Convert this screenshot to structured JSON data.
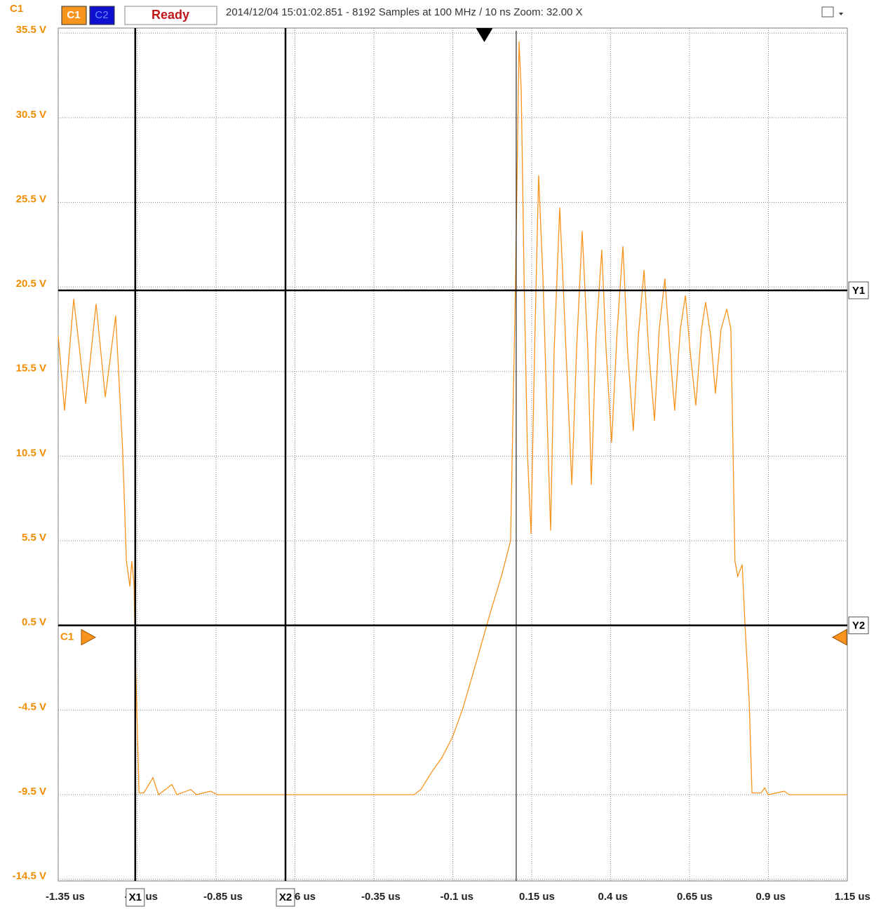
{
  "toolbar": {
    "channel": "C1",
    "button_c1": "C1",
    "button_c2": "C2",
    "status": "Ready",
    "info": "2014/12/04  15:01:02.851 - 8192 Samples at 100 MHz / 10 ns Zoom: 32.00 X"
  },
  "chart_data": {
    "type": "line",
    "xlim": [
      -1.35,
      1.15
    ],
    "ylim": [
      -14.6,
      35.8
    ],
    "grid": true,
    "xticks": [
      {
        "value": -1.35,
        "label": "-1.35 us"
      },
      {
        "value": -1.1,
        "label": "-1.1 us"
      },
      {
        "value": -0.85,
        "label": "-0.85 us"
      },
      {
        "value": -0.6,
        "label": "-0.6 us"
      },
      {
        "value": -0.35,
        "label": "-0.35 us"
      },
      {
        "value": -0.1,
        "label": "-0.1 us"
      },
      {
        "value": 0.15,
        "label": "0.15 us"
      },
      {
        "value": 0.4,
        "label": "0.4 us"
      },
      {
        "value": 0.65,
        "label": "0.65 us"
      },
      {
        "value": 0.9,
        "label": "0.9 us"
      },
      {
        "value": 1.15,
        "label": "1.15 us"
      }
    ],
    "yticks": [
      {
        "value": 35.5,
        "label": "35.5 V"
      },
      {
        "value": 30.5,
        "label": "30.5 V"
      },
      {
        "value": 25.5,
        "label": "25.5 V"
      },
      {
        "value": 20.5,
        "label": "20.5 V"
      },
      {
        "value": 15.5,
        "label": "15.5 V"
      },
      {
        "value": 10.5,
        "label": "10.5 V"
      },
      {
        "value": 5.5,
        "label": "5.5 V"
      },
      {
        "value": 0.5,
        "label": "0.5 V"
      },
      {
        "value": -4.5,
        "label": "-4.5 V"
      },
      {
        "value": -9.5,
        "label": "-9.5 V"
      },
      {
        "value": -14.5,
        "label": "-14.5 V"
      }
    ],
    "x": [
      -1.35,
      -1.33,
      -1.301,
      -1.263,
      -1.23,
      -1.201,
      -1.168,
      -1.146,
      -1.134,
      -1.123,
      -1.117,
      -1.11,
      -1.106,
      -1.094,
      -1.079,
      -1.05,
      -1.032,
      -0.99,
      -0.974,
      -0.93,
      -0.912,
      -0.868,
      -0.846,
      -0.223,
      -0.201,
      -0.168,
      -0.134,
      -0.101,
      -0.068,
      -0.023,
      0.021,
      0.054,
      0.083,
      0.099,
      0.103,
      0.11,
      0.117,
      0.126,
      0.137,
      0.148,
      0.159,
      0.172,
      0.186,
      0.199,
      0.21,
      0.221,
      0.239,
      0.254,
      0.277,
      0.292,
      0.31,
      0.328,
      0.339,
      0.354,
      0.372,
      0.386,
      0.403,
      0.421,
      0.439,
      0.454,
      0.472,
      0.488,
      0.506,
      0.521,
      0.539,
      0.554,
      0.572,
      0.588,
      0.603,
      0.621,
      0.637,
      0.652,
      0.67,
      0.688,
      0.701,
      0.717,
      0.732,
      0.75,
      0.768,
      0.781,
      0.794,
      0.803,
      0.817,
      0.826,
      0.839,
      0.848,
      0.877,
      0.888,
      0.899,
      0.95,
      0.966,
      1.15
    ],
    "series": [
      {
        "name": "C1",
        "color": "#f7941d",
        "values": [
          17.6,
          13.2,
          19.8,
          13.6,
          19.5,
          14.0,
          18.8,
          10.9,
          4.3,
          2.8,
          4.3,
          3.0,
          -0.9,
          -9.4,
          -9.4,
          -8.5,
          -9.5,
          -8.9,
          -9.5,
          -9.2,
          -9.5,
          -9.3,
          -9.5,
          -9.5,
          -9.2,
          -8.2,
          -7.3,
          -6.1,
          -4.4,
          -1.5,
          1.4,
          3.4,
          5.5,
          20.9,
          26.3,
          35.0,
          32.1,
          20.9,
          10.5,
          5.9,
          16.7,
          27.1,
          20.9,
          12.6,
          6.1,
          16.7,
          25.2,
          18.8,
          8.8,
          16.7,
          23.8,
          16.7,
          8.8,
          17.6,
          22.7,
          16.7,
          11.3,
          18.0,
          22.9,
          16.7,
          12.0,
          17.6,
          21.5,
          16.7,
          12.6,
          18.0,
          21.0,
          16.7,
          13.2,
          18.0,
          20.0,
          16.7,
          13.5,
          18.0,
          19.6,
          17.6,
          14.2,
          18.0,
          19.2,
          18.0,
          4.3,
          3.4,
          4.1,
          0.5,
          -4.0,
          -9.4,
          -9.4,
          -9.1,
          -9.5,
          -9.3,
          -9.5,
          -9.5
        ]
      }
    ],
    "x_cursors": [
      {
        "label": "X1",
        "value": -1.106
      },
      {
        "label": "X2",
        "value": -0.63
      }
    ],
    "y_cursors": [
      {
        "label": "Y1",
        "value": 20.3
      },
      {
        "label": "Y2",
        "value": 0.5
      }
    ],
    "offset_marker": {
      "label": "C1",
      "value": -0.2
    },
    "trigger_x": 0.0,
    "reference_x": 0.101
  }
}
